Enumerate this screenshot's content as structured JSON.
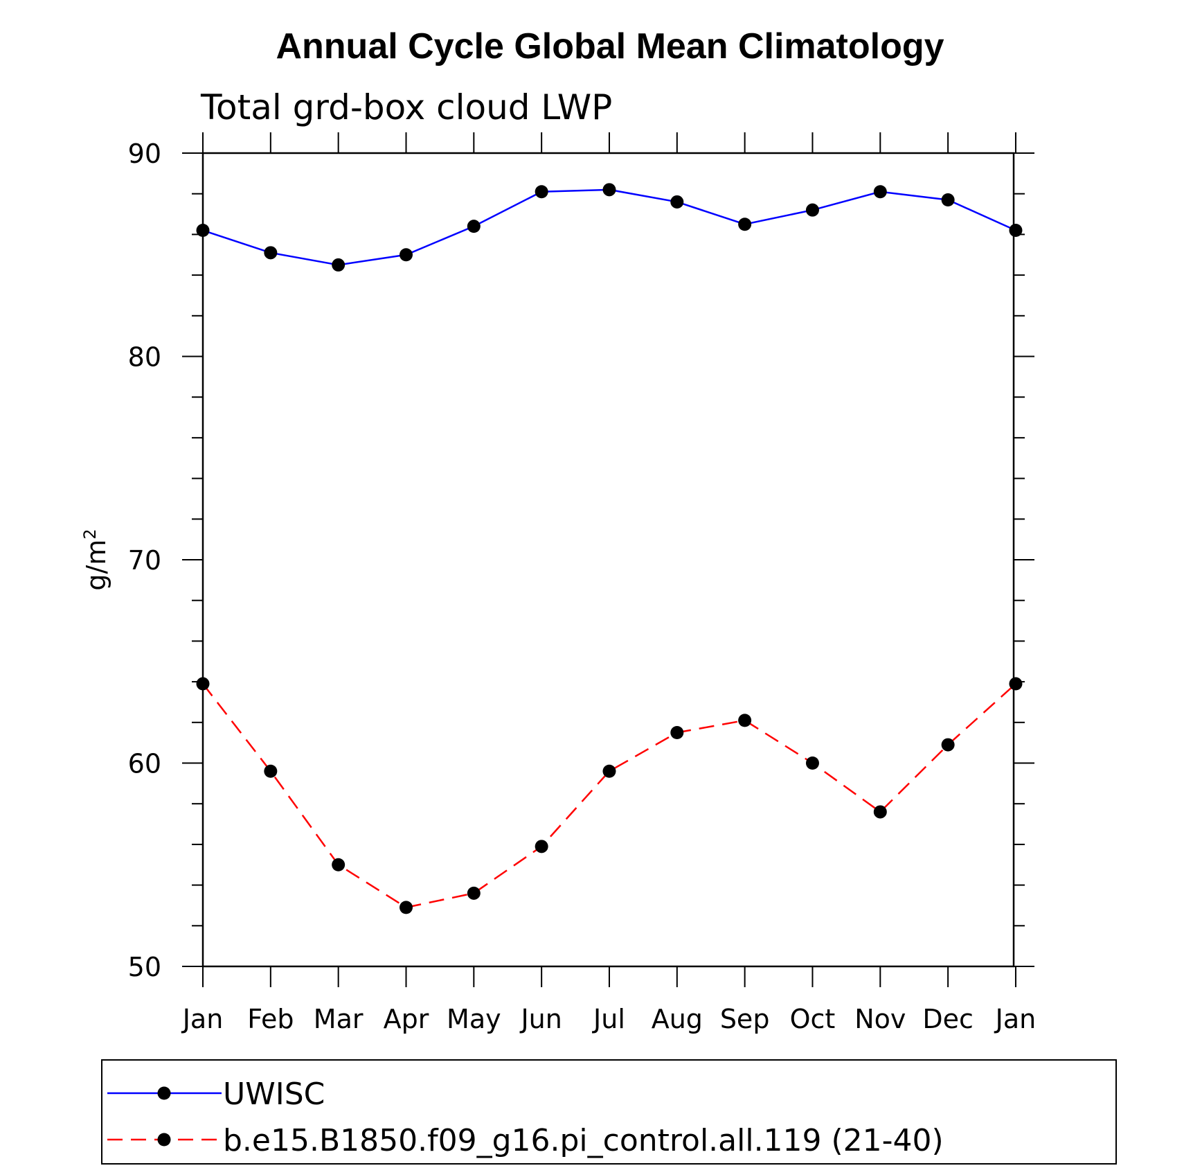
{
  "chart_data": {
    "type": "line",
    "title": "Annual Cycle Global Mean Climatology",
    "subtitle": "Total grd-box cloud LWP",
    "ylabel": "g/m",
    "ylabel_sup": "2",
    "xlabel": "",
    "ylim": [
      50,
      90
    ],
    "yticks": [
      50,
      60,
      70,
      80,
      90
    ],
    "categories": [
      "Jan",
      "Feb",
      "Mar",
      "Apr",
      "May",
      "Jun",
      "Jul",
      "Aug",
      "Sep",
      "Oct",
      "Nov",
      "Dec",
      "Jan"
    ],
    "grid": false,
    "legend_position": "bottom",
    "series": [
      {
        "name": "UWISC",
        "color": "#0000ff",
        "line_style": "solid",
        "marker": "filled-circle",
        "values": [
          86.2,
          85.1,
          84.5,
          85.0,
          86.4,
          88.1,
          88.2,
          87.6,
          86.5,
          87.2,
          88.1,
          87.7,
          86.2
        ]
      },
      {
        "name": "b.e15.B1850.f09_g16.pi_control.all.119 (21-40)",
        "color": "#ff0000",
        "line_style": "dashed",
        "marker": "filled-circle",
        "values": [
          63.9,
          59.6,
          55.0,
          52.9,
          53.6,
          55.9,
          59.6,
          61.5,
          62.1,
          60.0,
          57.6,
          60.9,
          63.9
        ]
      }
    ]
  }
}
